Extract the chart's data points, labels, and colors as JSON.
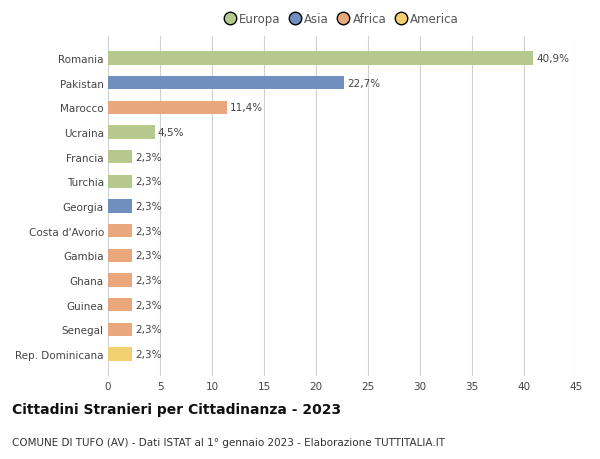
{
  "countries": [
    "Romania",
    "Pakistan",
    "Marocco",
    "Ucraina",
    "Francia",
    "Turchia",
    "Georgia",
    "Costa d'Avorio",
    "Gambia",
    "Ghana",
    "Guinea",
    "Senegal",
    "Rep. Dominicana"
  ],
  "values": [
    40.9,
    22.7,
    11.4,
    4.5,
    2.3,
    2.3,
    2.3,
    2.3,
    2.3,
    2.3,
    2.3,
    2.3,
    2.3
  ],
  "labels": [
    "40,9%",
    "22,7%",
    "11,4%",
    "4,5%",
    "2,3%",
    "2,3%",
    "2,3%",
    "2,3%",
    "2,3%",
    "2,3%",
    "2,3%",
    "2,3%",
    "2,3%"
  ],
  "colors": [
    "#b5c98e",
    "#6f8fbf",
    "#e8a87c",
    "#b5c98e",
    "#b5c98e",
    "#b5c98e",
    "#6f8fbf",
    "#e8a87c",
    "#e8a87c",
    "#e8a87c",
    "#e8a87c",
    "#e8a87c",
    "#f0d070"
  ],
  "legend_labels": [
    "Europa",
    "Asia",
    "Africa",
    "America"
  ],
  "legend_colors": [
    "#b5c98e",
    "#6f8fbf",
    "#e8a87c",
    "#f0d070"
  ],
  "title": "Cittadini Stranieri per Cittadinanza - 2023",
  "subtitle": "COMUNE DI TUFO (AV) - Dati ISTAT al 1° gennaio 2023 - Elaborazione TUTTITALIA.IT",
  "xlim": [
    0,
    45
  ],
  "xticks": [
    0,
    5,
    10,
    15,
    20,
    25,
    30,
    35,
    40,
    45
  ],
  "background_color": "#ffffff",
  "grid_color": "#d0d0d0",
  "bar_height": 0.55,
  "label_fontsize": 7.5,
  "title_fontsize": 10,
  "subtitle_fontsize": 7.5,
  "tick_fontsize": 7.5,
  "legend_fontsize": 8.5
}
